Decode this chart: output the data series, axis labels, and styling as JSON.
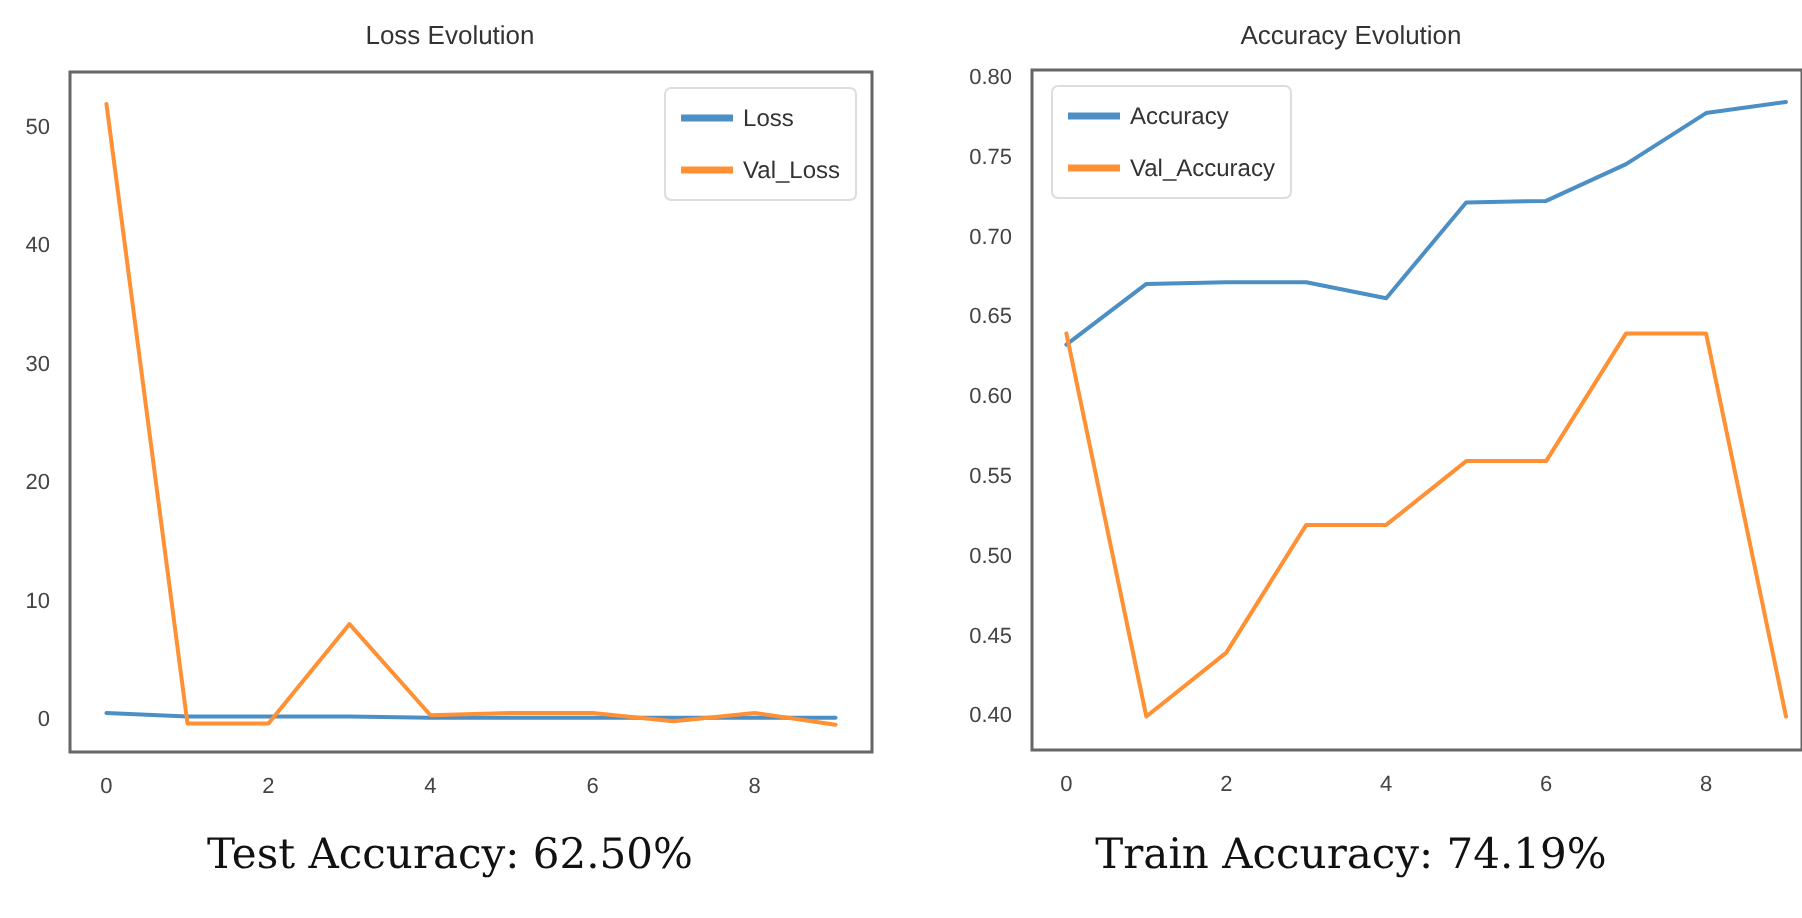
{
  "chart_data": [
    {
      "type": "line",
      "title": "Loss Evolution",
      "x": [
        0,
        1,
        2,
        3,
        4,
        5,
        6,
        7,
        8,
        9
      ],
      "legend": "top right",
      "series": [
        {
          "name": "Loss",
          "color": "#4c8fc4",
          "values": [
            0.6,
            0.3,
            0.3,
            0.3,
            0.2,
            0.2,
            0.2,
            0.2,
            0.2,
            0.2
          ]
        },
        {
          "name": "Val_Loss",
          "color": "#ff9034",
          "values": [
            52.0,
            -0.3,
            -0.3,
            8.1,
            0.4,
            0.6,
            0.6,
            -0.1,
            0.6,
            -0.4
          ]
        }
      ],
      "xlim": [
        -0.45,
        9.45
      ],
      "xticks": [
        0,
        2,
        4,
        6,
        8
      ],
      "ylim": [
        -2.7,
        54.7
      ],
      "yticks": [
        0,
        10,
        20,
        30,
        40,
        50
      ],
      "annotations": [
        "Test Accuracy: 62.50%"
      ]
    },
    {
      "type": "line",
      "title": "Accuracy Evolution",
      "x": [
        0,
        1,
        2,
        3,
        4,
        5,
        6,
        7,
        8,
        9
      ],
      "legend": "top left",
      "series": [
        {
          "name": "Accuracy",
          "color": "#4c8fc4",
          "values": [
            0.633,
            0.671,
            0.672,
            0.672,
            0.662,
            0.722,
            0.723,
            0.746,
            0.778,
            0.785
          ]
        },
        {
          "name": "Val_Accuracy",
          "color": "#ff9034",
          "values": [
            0.64,
            0.4,
            0.44,
            0.52,
            0.52,
            0.56,
            0.56,
            0.64,
            0.64,
            0.4
          ]
        }
      ],
      "xlim": [
        -0.43,
        9.2
      ],
      "xticks": [
        0,
        2,
        4,
        6,
        8
      ],
      "ylim": [
        0.379,
        0.805
      ],
      "yticks": [
        {
          "value": 0.4,
          "label": "0.40"
        },
        {
          "value": 0.45,
          "label": "0.45"
        },
        {
          "value": 0.5,
          "label": "0.50"
        },
        {
          "value": 0.55,
          "label": "0.55"
        },
        {
          "value": 0.6,
          "label": "0.60"
        },
        {
          "value": 0.65,
          "label": "0.65"
        },
        {
          "value": 0.7,
          "label": "0.70"
        },
        {
          "value": 0.75,
          "label": "0.75"
        },
        {
          "value": 0.8,
          "label": "0.80"
        }
      ],
      "annotations": [
        "Train Accuracy: 74.19%"
      ]
    }
  ]
}
